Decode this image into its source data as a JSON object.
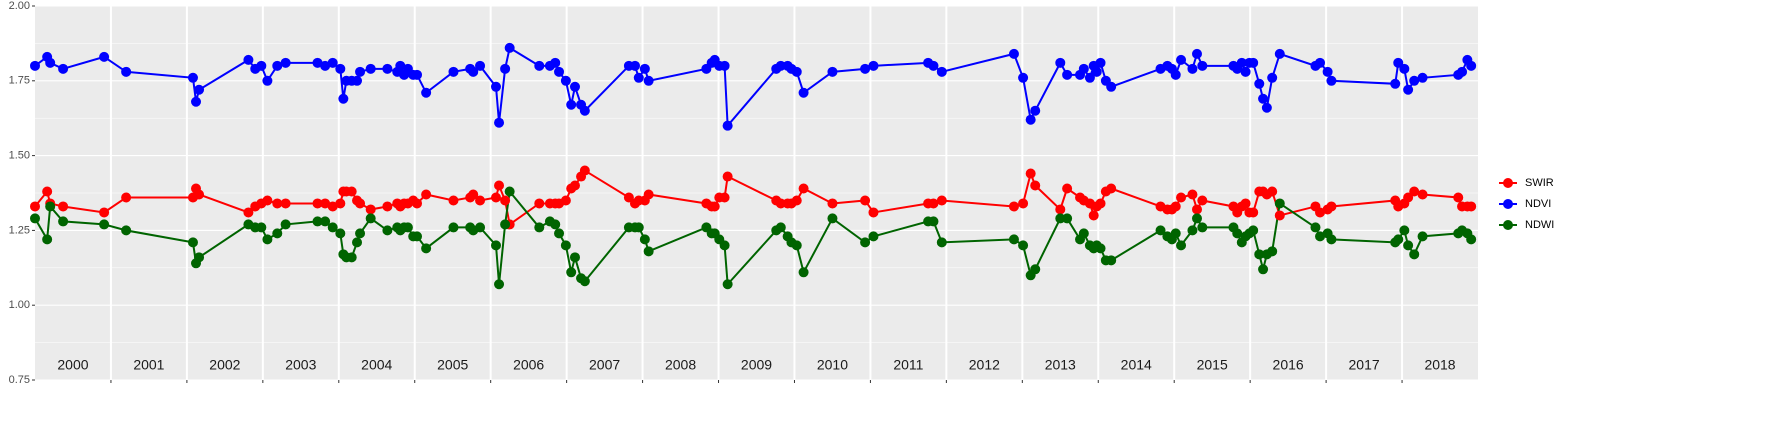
{
  "chart_data": {
    "type": "line",
    "x": [
      2000.0,
      2000.16,
      2000.2,
      2000.37,
      2000.91,
      2001.2,
      2002.08,
      2002.12,
      2002.16,
      2002.81,
      2002.9,
      2002.98,
      2003.06,
      2003.19,
      2003.3,
      2003.72,
      2003.82,
      2003.92,
      2004.02,
      2004.06,
      2004.1,
      2004.17,
      2004.24,
      2004.28,
      2004.42,
      2004.64,
      2004.77,
      2004.81,
      2004.86,
      2004.91,
      2004.98,
      2005.03,
      2005.15,
      2005.51,
      2005.73,
      2005.77,
      2005.86,
      2006.07,
      2006.11,
      2006.19,
      2006.25,
      2006.64,
      2006.78,
      2006.85,
      2006.9,
      2006.99,
      2007.06,
      2007.11,
      2007.19,
      2007.24,
      2007.82,
      2007.9,
      2007.95,
      2008.03,
      2008.08,
      2008.84,
      2008.91,
      2008.95,
      2009.01,
      2009.08,
      2009.12,
      2009.76,
      2009.82,
      2009.91,
      2009.96,
      2010.03,
      2010.12,
      2010.5,
      2010.93,
      2011.04,
      2011.76,
      2011.83,
      2011.94,
      2012.89,
      2013.01,
      2013.11,
      2013.17,
      2013.5,
      2013.59,
      2013.76,
      2013.81,
      2013.89,
      2013.94,
      2013.98,
      2014.03,
      2014.1,
      2014.17,
      2014.82,
      2014.91,
      2014.97,
      2015.02,
      2015.09,
      2015.24,
      2015.3,
      2015.37,
      2015.78,
      2015.83,
      2015.89,
      2015.94,
      2015.99,
      2016.04,
      2016.12,
      2016.17,
      2016.22,
      2016.29,
      2016.39,
      2016.86,
      2016.92,
      2017.02,
      2017.07,
      2017.91,
      2017.95,
      2018.03,
      2018.08,
      2018.16,
      2018.27,
      2018.74,
      2018.79,
      2018.86,
      2018.91
    ],
    "series": [
      {
        "name": "SWIR",
        "color": "#ff0000",
        "values": [
          1.33,
          1.38,
          1.34,
          1.33,
          1.31,
          1.36,
          1.36,
          1.39,
          1.37,
          1.31,
          1.33,
          1.34,
          1.35,
          1.34,
          1.34,
          1.34,
          1.34,
          1.33,
          1.34,
          1.38,
          1.38,
          1.38,
          1.35,
          1.34,
          1.32,
          1.33,
          1.34,
          1.33,
          1.34,
          1.34,
          1.35,
          1.34,
          1.37,
          1.35,
          1.36,
          1.37,
          1.35,
          1.36,
          1.4,
          1.35,
          1.27,
          1.34,
          1.34,
          1.34,
          1.34,
          1.35,
          1.39,
          1.4,
          1.43,
          1.45,
          1.36,
          1.34,
          1.35,
          1.35,
          1.37,
          1.34,
          1.33,
          1.33,
          1.36,
          1.36,
          1.43,
          1.35,
          1.34,
          1.34,
          1.34,
          1.35,
          1.39,
          1.34,
          1.35,
          1.31,
          1.34,
          1.34,
          1.35,
          1.33,
          1.34,
          1.44,
          1.4,
          1.32,
          1.39,
          1.36,
          1.35,
          1.34,
          1.3,
          1.33,
          1.34,
          1.38,
          1.39,
          1.33,
          1.32,
          1.32,
          1.33,
          1.36,
          1.37,
          1.32,
          1.35,
          1.33,
          1.31,
          1.33,
          1.34,
          1.31,
          1.31,
          1.38,
          1.38,
          1.37,
          1.38,
          1.3,
          1.33,
          1.31,
          1.32,
          1.33,
          1.35,
          1.33,
          1.34,
          1.36,
          1.38,
          1.37,
          1.36,
          1.33,
          1.33,
          1.33
        ]
      },
      {
        "name": "NDVI",
        "color": "#0000ff",
        "values": [
          1.8,
          1.83,
          1.81,
          1.79,
          1.83,
          1.78,
          1.76,
          1.68,
          1.72,
          1.82,
          1.79,
          1.8,
          1.75,
          1.8,
          1.81,
          1.81,
          1.8,
          1.81,
          1.79,
          1.69,
          1.75,
          1.75,
          1.75,
          1.78,
          1.79,
          1.79,
          1.78,
          1.8,
          1.77,
          1.79,
          1.77,
          1.77,
          1.71,
          1.78,
          1.79,
          1.78,
          1.8,
          1.73,
          1.61,
          1.79,
          1.86,
          1.8,
          1.8,
          1.81,
          1.78,
          1.75,
          1.67,
          1.73,
          1.67,
          1.65,
          1.8,
          1.8,
          1.76,
          1.79,
          1.75,
          1.79,
          1.81,
          1.82,
          1.8,
          1.8,
          1.6,
          1.79,
          1.8,
          1.8,
          1.79,
          1.78,
          1.71,
          1.78,
          1.79,
          1.8,
          1.81,
          1.8,
          1.78,
          1.84,
          1.76,
          1.62,
          1.65,
          1.81,
          1.77,
          1.77,
          1.79,
          1.76,
          1.8,
          1.78,
          1.81,
          1.75,
          1.73,
          1.79,
          1.8,
          1.79,
          1.77,
          1.82,
          1.79,
          1.84,
          1.8,
          1.8,
          1.79,
          1.81,
          1.78,
          1.81,
          1.81,
          1.74,
          1.69,
          1.66,
          1.76,
          1.84,
          1.8,
          1.81,
          1.78,
          1.75,
          1.74,
          1.81,
          1.79,
          1.72,
          1.75,
          1.76,
          1.77,
          1.78,
          1.82,
          1.8
        ]
      },
      {
        "name": "NDWI",
        "color": "#006400",
        "values": [
          1.29,
          1.22,
          1.33,
          1.28,
          1.27,
          1.25,
          1.21,
          1.14,
          1.16,
          1.27,
          1.26,
          1.26,
          1.22,
          1.24,
          1.27,
          1.28,
          1.28,
          1.26,
          1.24,
          1.17,
          1.16,
          1.16,
          1.21,
          1.24,
          1.29,
          1.25,
          1.26,
          1.25,
          1.26,
          1.26,
          1.23,
          1.23,
          1.19,
          1.26,
          1.26,
          1.25,
          1.26,
          1.2,
          1.07,
          1.27,
          1.38,
          1.26,
          1.28,
          1.27,
          1.24,
          1.2,
          1.11,
          1.16,
          1.09,
          1.08,
          1.26,
          1.26,
          1.26,
          1.22,
          1.18,
          1.26,
          1.24,
          1.24,
          1.22,
          1.2,
          1.07,
          1.25,
          1.26,
          1.23,
          1.21,
          1.2,
          1.11,
          1.29,
          1.21,
          1.23,
          1.28,
          1.28,
          1.21,
          1.22,
          1.2,
          1.1,
          1.12,
          1.29,
          1.29,
          1.22,
          1.24,
          1.2,
          1.19,
          1.2,
          1.19,
          1.15,
          1.15,
          1.25,
          1.23,
          1.22,
          1.24,
          1.2,
          1.25,
          1.29,
          1.26,
          1.26,
          1.24,
          1.21,
          1.23,
          1.24,
          1.25,
          1.17,
          1.12,
          1.17,
          1.18,
          1.34,
          1.26,
          1.23,
          1.24,
          1.22,
          1.21,
          1.22,
          1.25,
          1.2,
          1.17,
          1.23,
          1.24,
          1.25,
          1.24,
          1.22
        ]
      }
    ],
    "xlim": [
      2000,
      2019
    ],
    "xticks": [
      2001,
      2002,
      2003,
      2004,
      2005,
      2006,
      2007,
      2008,
      2009,
      2010,
      2011,
      2012,
      2013,
      2014,
      2015,
      2016,
      2017,
      2018
    ],
    "year_labels": [
      "2000",
      "2001",
      "2002",
      "2003",
      "2004",
      "2005",
      "2006",
      "2007",
      "2008",
      "2009",
      "2010",
      "2011",
      "2012",
      "2013",
      "2014",
      "2015",
      "2016",
      "2017",
      "2018"
    ],
    "ylim": [
      0.75,
      2.0
    ],
    "yticks": [
      {
        "value": 0.75,
        "label": "0.75"
      },
      {
        "value": 1.0,
        "label": "1.00"
      },
      {
        "value": 1.25,
        "label": "1.25"
      },
      {
        "value": 1.5,
        "label": "1.50"
      },
      {
        "value": 1.75,
        "label": "1.75"
      },
      {
        "value": 2.0,
        "label": "2.00"
      }
    ],
    "grid": true,
    "legend": "right"
  }
}
